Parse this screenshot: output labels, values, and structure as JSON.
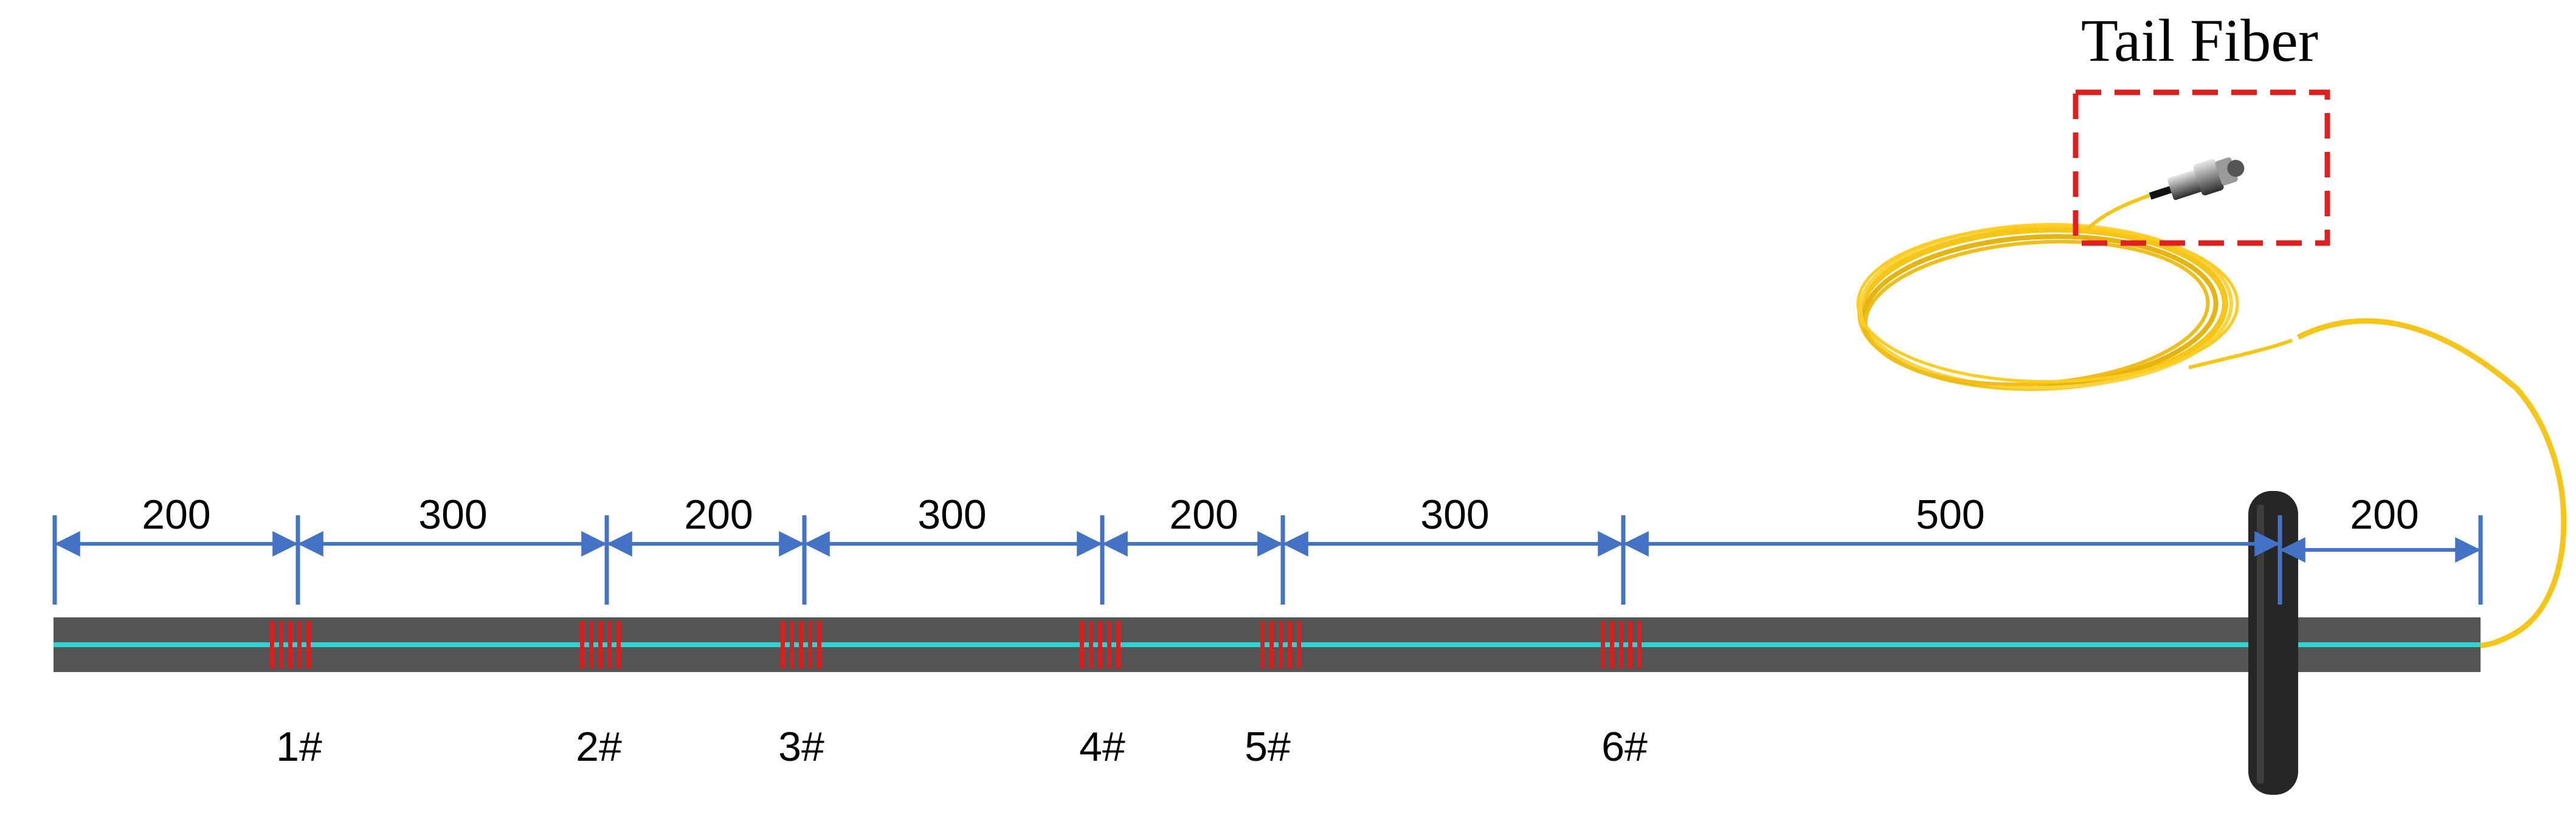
{
  "diagram": {
    "title": "Tail Fiber",
    "spacings": [
      "200",
      "300",
      "200",
      "300",
      "200",
      "300",
      "500",
      "200"
    ],
    "sensors": [
      "1#",
      "2#",
      "3#",
      "4#",
      "5#",
      "6#"
    ]
  },
  "colors": {
    "rod": "#555555",
    "fiber_core": "#2ed3d3",
    "grating": "#d81e1e",
    "dimension_arrow": "#4472c4",
    "tail_fiber": "#f5c518",
    "highlight_box": "#e02020",
    "clamp": "#262626"
  },
  "icons": {
    "connector": "fiber-connector-icon"
  }
}
